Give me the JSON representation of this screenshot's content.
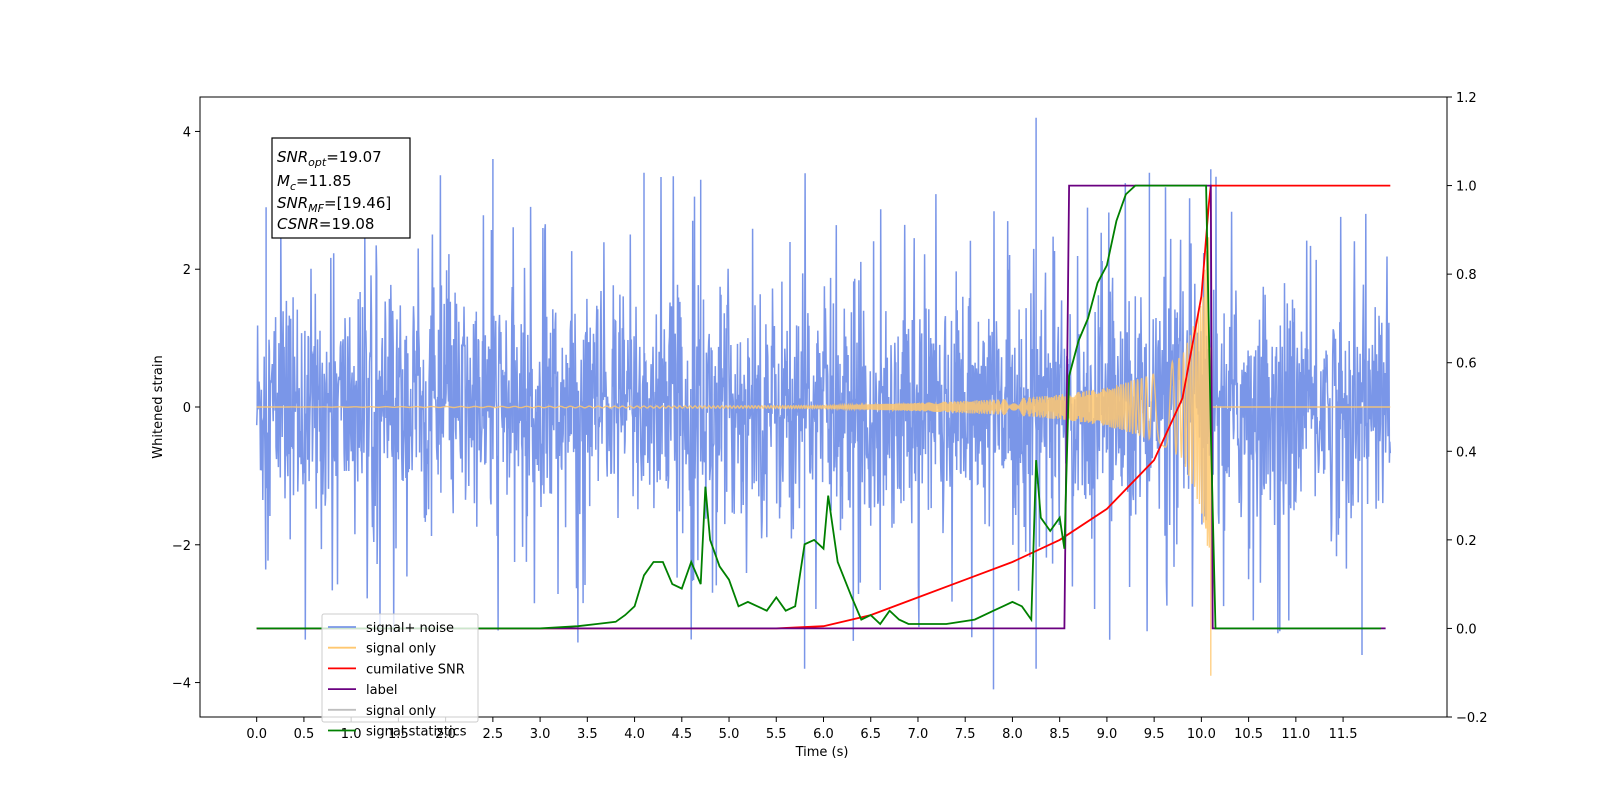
{
  "chart_data": {
    "type": "line",
    "title": "",
    "xlabel": "Time (s)",
    "ylabel": "Whitened strain",
    "y2label": "",
    "xlim": [
      -0.6,
      12.6
    ],
    "ylim": [
      -4.5,
      4.5
    ],
    "y2lim": [
      -0.2,
      1.2
    ],
    "x_ticks": [
      "0.0",
      "0.5",
      "1.0",
      "1.5",
      "2.0",
      "2.5",
      "3.0",
      "3.5",
      "4.0",
      "4.5",
      "5.0",
      "5.5",
      "6.0",
      "6.5",
      "7.0",
      "7.5",
      "8.0",
      "8.5",
      "9.0",
      "9.5",
      "10.0",
      "10.5",
      "11.0",
      "11.5"
    ],
    "y_ticks": [
      "4",
      "2",
      "0",
      "−2",
      "−4"
    ],
    "y2_ticks": [
      "1.2",
      "1.0",
      "0.8",
      "0.6",
      "0.4",
      "0.2",
      "0.0",
      "−0.2"
    ],
    "grid": false,
    "legend_position": "lower-left",
    "annotation": {
      "snr_opt_base": "SNR",
      "snr_opt_sub": "opt",
      "snr_opt_val": "=19.07",
      "mc_base": "M",
      "mc_sub": "c",
      "mc_val": "=11.85",
      "snr_mf_base": "SNR",
      "snr_mf_sub": "MF",
      "snr_mf_val": "=[19.46]",
      "csnr_base": "CSNR",
      "csnr_val": "=19.08"
    },
    "series": [
      {
        "name": "signal+ noise",
        "axis": "left",
        "color": "#7a96e8",
        "description_values": {
          "x_range": [
            0.0,
            12.0
          ],
          "noise_band_typical": [
            -1.5,
            1.5
          ],
          "peaks": [
            [
              0.1,
              2.9
            ],
            [
              2.5,
              3.6
            ],
            [
              4.1,
              3.4
            ],
            [
              4.7,
              3.3
            ],
            [
              8.25,
              4.2
            ],
            [
              9.45,
              3.4
            ],
            [
              10.1,
              3.45
            ],
            [
              7.8,
              -4.1
            ],
            [
              8.25,
              -3.8
            ],
            [
              5.8,
              -3.8
            ],
            [
              11.7,
              -3.6
            ]
          ]
        }
      },
      {
        "name": "signal only",
        "axis": "left",
        "color": "#ffc870",
        "description_values": {
          "envelope_x": [
            0.0,
            6.0,
            7.0,
            8.0,
            8.5,
            9.0,
            9.5,
            9.8,
            10.0,
            10.08,
            10.1,
            12.0
          ],
          "envelope_amp": [
            0.0,
            0.02,
            0.06,
            0.12,
            0.18,
            0.28,
            0.48,
            0.75,
            1.5,
            2.6,
            0.0,
            0.0
          ],
          "spike": [
            10.1,
            -3.9
          ]
        }
      },
      {
        "name": "cumilative SNR",
        "axis": "right",
        "color": "#ff0000",
        "x": [
          0.0,
          5.5,
          6.0,
          6.5,
          7.0,
          7.5,
          8.0,
          8.5,
          9.0,
          9.5,
          9.8,
          10.0,
          10.08,
          10.1,
          12.0
        ],
        "y": [
          0.0,
          0.0,
          0.005,
          0.03,
          0.07,
          0.11,
          0.15,
          0.2,
          0.27,
          0.38,
          0.52,
          0.75,
          0.96,
          1.0,
          1.0
        ]
      },
      {
        "name": "label",
        "axis": "right",
        "color": "#6a0080",
        "x": [
          0.0,
          8.55,
          8.6,
          10.1,
          10.12,
          11.95
        ],
        "y": [
          0.0,
          0.0,
          1.0,
          1.0,
          0.0,
          0.0
        ]
      },
      {
        "name": "signal only",
        "axis": "left",
        "color": "#bfbfbf",
        "legend_only": true
      },
      {
        "name": "signal statistics",
        "axis": "right",
        "color": "#008000",
        "x": [
          0.0,
          2.0,
          3.0,
          3.4,
          3.6,
          3.8,
          3.9,
          4.0,
          4.1,
          4.2,
          4.3,
          4.4,
          4.5,
          4.6,
          4.7,
          4.75,
          4.8,
          4.9,
          5.0,
          5.1,
          5.2,
          5.3,
          5.4,
          5.5,
          5.6,
          5.7,
          5.8,
          5.9,
          6.0,
          6.05,
          6.15,
          6.3,
          6.4,
          6.5,
          6.6,
          6.7,
          6.8,
          6.9,
          7.0,
          7.3,
          7.6,
          7.8,
          7.9,
          8.0,
          8.1,
          8.2,
          8.25,
          8.3,
          8.4,
          8.5,
          8.55,
          8.6,
          8.7,
          8.8,
          8.9,
          9.0,
          9.1,
          9.2,
          9.3,
          9.5,
          9.7,
          9.9,
          10.05,
          10.1,
          10.15,
          10.2,
          11.0,
          11.9
        ],
        "y": [
          0.0,
          0.0,
          0.0,
          0.005,
          0.01,
          0.015,
          0.03,
          0.05,
          0.12,
          0.15,
          0.15,
          0.1,
          0.09,
          0.15,
          0.1,
          0.32,
          0.2,
          0.14,
          0.11,
          0.05,
          0.06,
          0.05,
          0.04,
          0.07,
          0.04,
          0.05,
          0.19,
          0.2,
          0.18,
          0.3,
          0.15,
          0.07,
          0.02,
          0.03,
          0.01,
          0.04,
          0.02,
          0.01,
          0.01,
          0.01,
          0.02,
          0.04,
          0.05,
          0.06,
          0.05,
          0.02,
          0.38,
          0.25,
          0.22,
          0.25,
          0.18,
          0.57,
          0.65,
          0.7,
          0.78,
          0.82,
          0.92,
          0.98,
          1.0,
          1.0,
          1.0,
          1.0,
          1.0,
          0.45,
          0.0,
          0.0,
          0.0,
          0.0
        ]
      }
    ]
  }
}
